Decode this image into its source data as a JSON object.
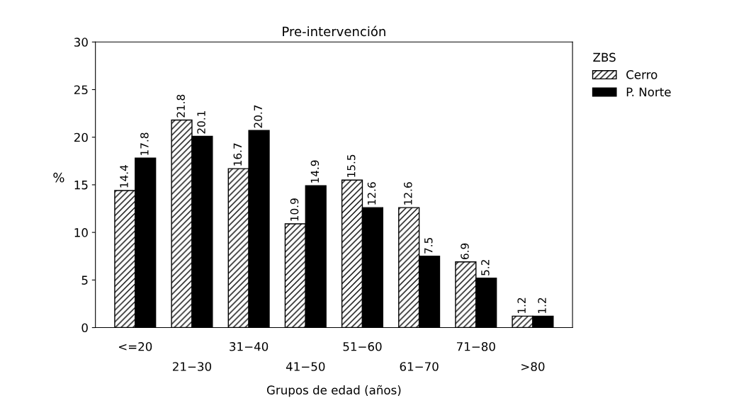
{
  "chart_data": {
    "type": "bar",
    "title": "Pre-intervención",
    "xlabel": "Grupos de edad (años)",
    "ylabel": "%",
    "legend_title": "ZBS",
    "categories": [
      "<=20",
      "21−30",
      "31−40",
      "41−50",
      "51−60",
      "61−70",
      "71−80",
      ">80"
    ],
    "series": [
      {
        "name": "Cerro",
        "color": "#000000",
        "values": [
          14.4,
          21.8,
          16.7,
          10.9,
          15.5,
          12.6,
          6.9,
          1.2
        ]
      },
      {
        "name": "P. Norte",
        "color": "#000000",
        "values": [
          17.8,
          20.1,
          20.7,
          14.9,
          12.6,
          7.5,
          5.2,
          1.2
        ]
      }
    ],
    "ylim": [
      0,
      30
    ],
    "yticks": [
      0,
      5,
      10,
      15,
      20,
      25,
      30
    ],
    "grid": false,
    "legend": "top right",
    "data_labels": true
  }
}
